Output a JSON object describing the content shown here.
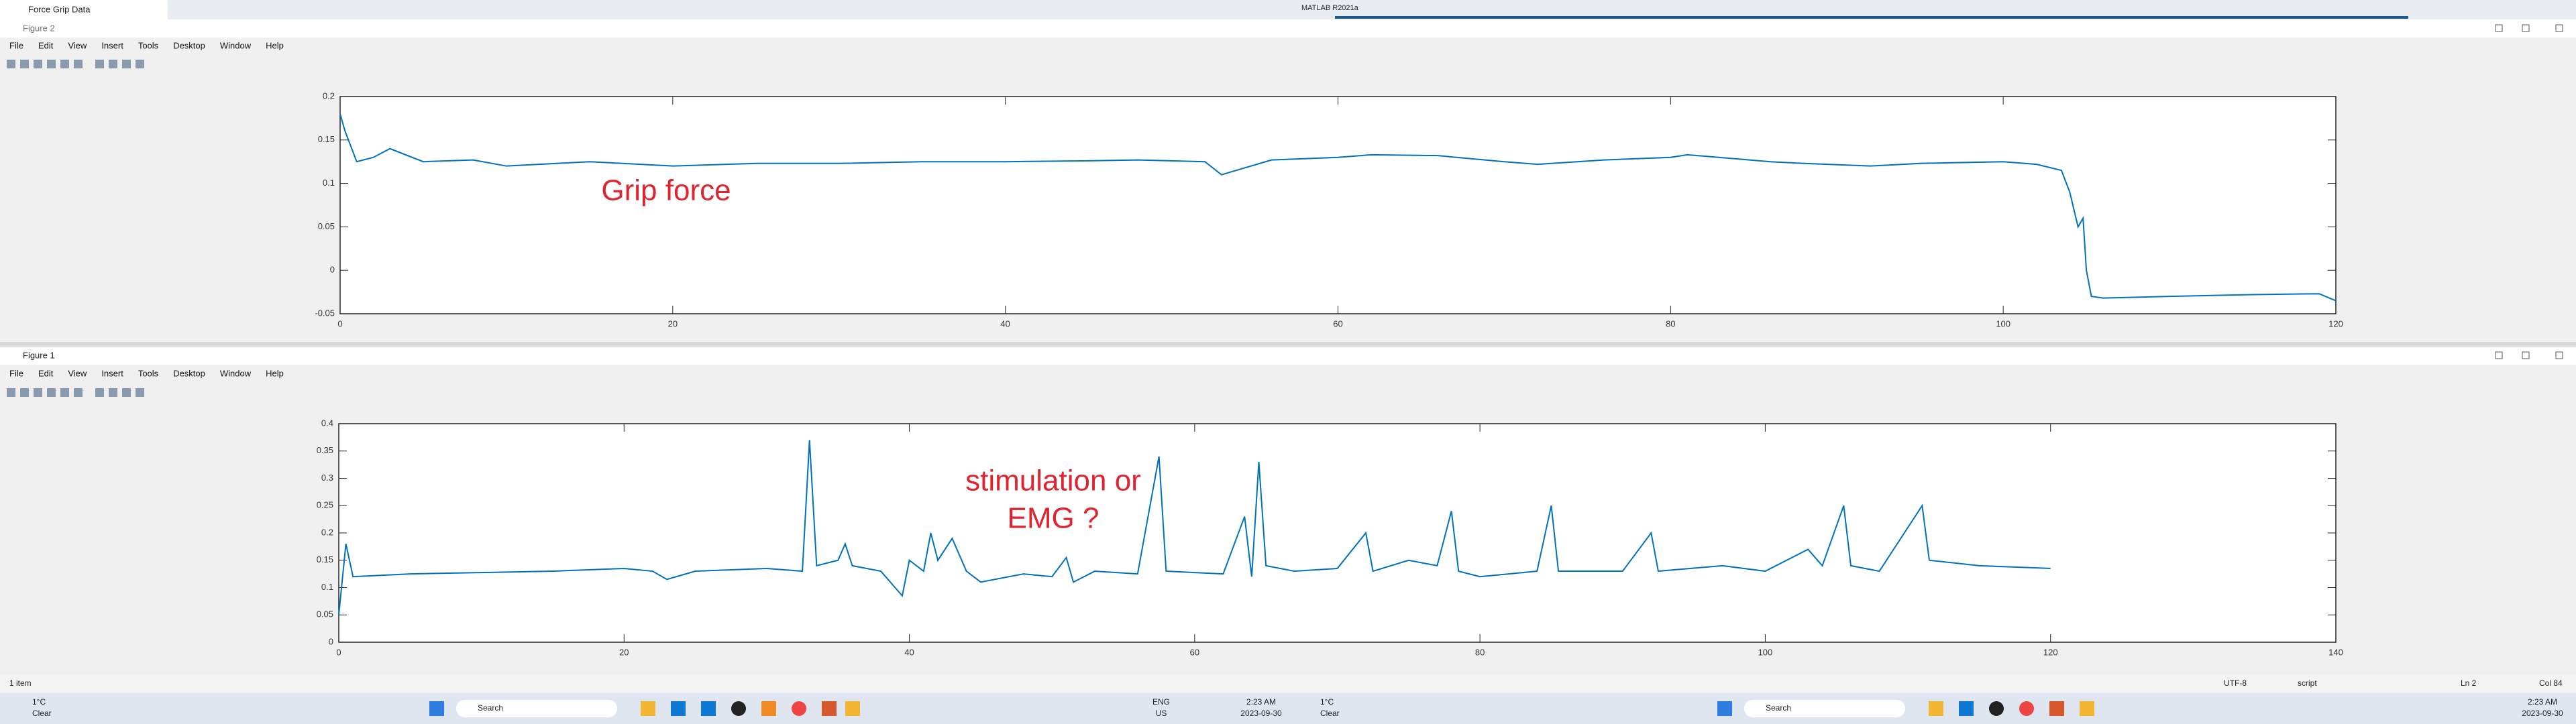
{
  "browser_tab": {
    "title": "Force Grip Data"
  },
  "matlab_title": "MATLAB R2021a",
  "windows": [
    {
      "title": "Figure 2",
      "menu": [
        "File",
        "Edit",
        "View",
        "Insert",
        "Tools",
        "Desktop",
        "Window",
        "Help"
      ]
    },
    {
      "title": "Figure 1",
      "menu": [
        "File",
        "Edit",
        "View",
        "Insert",
        "Tools",
        "Desktop",
        "Window",
        "Help"
      ]
    }
  ],
  "chart_data": [
    {
      "type": "line",
      "annotation": [
        "Grip force"
      ],
      "x": [
        0,
        0.3,
        1,
        2,
        3,
        5,
        8,
        10,
        15,
        20,
        25,
        30,
        35,
        40,
        45,
        48,
        52,
        53,
        56,
        60,
        62,
        66,
        70,
        72,
        76,
        80,
        81,
        86,
        88,
        92,
        95,
        100,
        102,
        103.5,
        104,
        104.5,
        104.8,
        105,
        105.3,
        106,
        110,
        115,
        119,
        120
      ],
      "series": [
        {
          "color": "#0072bd",
          "values": [
            0.18,
            0.16,
            0.125,
            0.13,
            0.14,
            0.125,
            0.127,
            0.12,
            0.125,
            0.12,
            0.123,
            0.123,
            0.125,
            0.125,
            0.126,
            0.127,
            0.125,
            0.11,
            0.127,
            0.13,
            0.133,
            0.132,
            0.125,
            0.122,
            0.127,
            0.13,
            0.133,
            0.125,
            0.123,
            0.12,
            0.123,
            0.125,
            0.122,
            0.115,
            0.09,
            0.05,
            0.06,
            0.0,
            -0.03,
            -0.032,
            -0.03,
            -0.028,
            -0.027,
            -0.035
          ]
        }
      ],
      "xlim": [
        0,
        120
      ],
      "xticks": [
        0,
        20,
        40,
        60,
        80,
        100,
        120
      ],
      "ylim": [
        -0.05,
        0.2
      ],
      "yticks": [
        -0.05,
        0,
        0.05,
        0.1,
        0.15,
        0.2
      ]
    },
    {
      "type": "line",
      "annotation": [
        "stimulation or",
        "EMG ?"
      ],
      "x": [
        0,
        0.5,
        1,
        5,
        15,
        20,
        22,
        23,
        25,
        30,
        32.5,
        33,
        33.5,
        35,
        35.5,
        36,
        38,
        39,
        39.5,
        40,
        41,
        41.5,
        42,
        43,
        44,
        45,
        48,
        50,
        51,
        51.5,
        53,
        56,
        57.5,
        58,
        62,
        63.5,
        64,
        64.5,
        65,
        67,
        70,
        72,
        72.5,
        75,
        77,
        78,
        78.5,
        80,
        84,
        85,
        85.5,
        90,
        92,
        92.5,
        97,
        100,
        103,
        104,
        105.5,
        106,
        108,
        111,
        111.5,
        115,
        120
      ],
      "series": [
        {
          "color": "#0072bd",
          "values": [
            0.05,
            0.18,
            0.12,
            0.125,
            0.13,
            0.135,
            0.13,
            0.115,
            0.13,
            0.135,
            0.13,
            0.37,
            0.14,
            0.15,
            0.18,
            0.14,
            0.13,
            0.1,
            0.085,
            0.15,
            0.13,
            0.2,
            0.15,
            0.19,
            0.13,
            0.11,
            0.125,
            0.12,
            0.155,
            0.11,
            0.13,
            0.125,
            0.34,
            0.13,
            0.125,
            0.23,
            0.12,
            0.33,
            0.14,
            0.13,
            0.135,
            0.2,
            0.13,
            0.15,
            0.14,
            0.24,
            0.13,
            0.12,
            0.13,
            0.25,
            0.13,
            0.13,
            0.2,
            0.13,
            0.14,
            0.13,
            0.17,
            0.14,
            0.25,
            0.14,
            0.13,
            0.25,
            0.15,
            0.14,
            0.135
          ]
        }
      ],
      "xlim": [
        0,
        140
      ],
      "xticks": [
        0,
        20,
        40,
        60,
        80,
        100,
        120,
        140
      ],
      "ylim": [
        0,
        0.4
      ],
      "yticks": [
        0,
        0.05,
        0.1,
        0.15,
        0.2,
        0.25,
        0.3,
        0.35,
        0.4
      ]
    }
  ],
  "status_bar": {
    "items": "1 item",
    "encoding": "UTF-8",
    "mode": "script",
    "line": "Ln 2",
    "col": "Col 84"
  },
  "taskbars": [
    {
      "temp": "1°C",
      "weather": "Clear",
      "search": "Search",
      "lang": "ENG",
      "region": "US",
      "time": "2:23 AM",
      "date": "2023-09-30"
    },
    {
      "temp": "1°C",
      "weather": "Clear",
      "search": "Search",
      "time": "2:23 AM",
      "date": "2023-09-30"
    }
  ]
}
